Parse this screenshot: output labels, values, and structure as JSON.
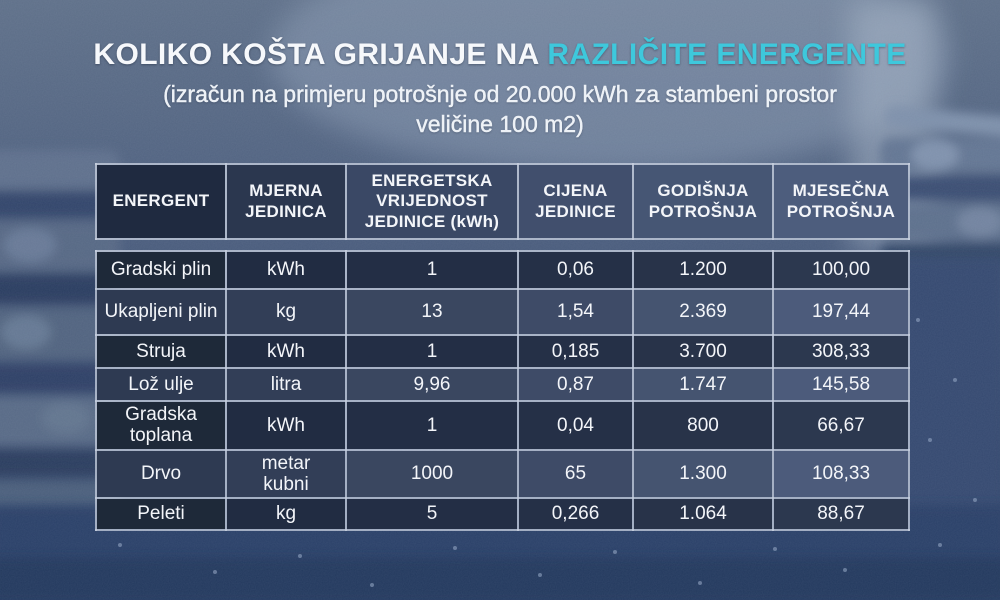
{
  "title": {
    "main": "KOLIKO KOŠTA GRIJANJE NA",
    "accent": "RAZLIČITE ENERGENTE",
    "subtitle": "(izračun na primjeru potrošnje od 20.000 kWh za stambeni prostor veličine 100 m2)"
  },
  "colors": {
    "accent_cyan": "#3EC8DC",
    "dark_row": "#212C42",
    "light_row": "#3A4760",
    "cell_border": "#C9D2E0",
    "text": "#F3F5F9",
    "background_tint": "#46597C"
  },
  "chart_data": {
    "type": "table",
    "title": "KOLIKO KOŠTA GRIJANJE NA RAZLIČITE ENERGENTE",
    "subtitle": "(izračun na primjeru potrošnje od 20.000 kWh za stambeni prostor veličine 100 m2)",
    "columns": [
      "ENERGENT",
      "MJERNA JEDINICA",
      "ENERGETSKA VRIJEDNOST JEDINICE (kWh)",
      "CIJENA JEDINICE",
      "GODIŠNJA POTROŠNJA",
      "MJESEČNA POTROŠNJA"
    ],
    "rows": [
      [
        "Gradski plin",
        "kWh",
        "1",
        "0,06",
        "1.200",
        "100,00"
      ],
      [
        "Ukapljeni plin",
        "kg",
        "13",
        "1,54",
        "2.369",
        "197,44"
      ],
      [
        "Struja",
        "kWh",
        "1",
        "0,185",
        "3.700",
        "308,33"
      ],
      [
        "Lož ulje",
        "litra",
        "9,96",
        "0,87",
        "1.747",
        "145,58"
      ],
      [
        "Gradska toplana",
        "kWh",
        "1",
        "0,04",
        "800",
        "66,67"
      ],
      [
        "Drvo",
        "metar kubni",
        "1000",
        "65",
        "1.300",
        "108,33"
      ],
      [
        "Peleti",
        "kg",
        "5",
        "0,266",
        "1.064",
        "88,67"
      ]
    ]
  }
}
